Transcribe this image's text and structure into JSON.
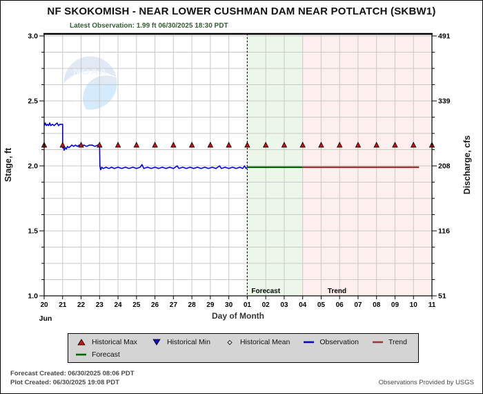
{
  "header": {
    "title": "NF SKOKOMISH - NEAR LOWER CUSHMAN DAM NEAR POTLATCH  (SKBW1)",
    "latest_observation": "Latest Observation: 1.99 ft 06/30/2025 18:30 PDT"
  },
  "footer": {
    "forecast_created": "Forecast Created: 06/30/2025 08:06 PDT",
    "plot_created": "Plot Created: 06/30/2025 19:08 PDT",
    "credit": "Observations Provided by USGS"
  },
  "colors": {
    "observation": "#0000e0",
    "forecast": "#006400",
    "trend": "#a63232",
    "historical_max": "#cc1111",
    "historical_min": "#1111cc",
    "historical_mean": "#e8e8e8",
    "forecast_band": "#edf7e9",
    "trend_band": "#fcefee",
    "gridline": "#c9c9c9",
    "legend_bg": "#d4d4d4"
  },
  "chart_data": {
    "type": "line",
    "title": "NF SKOKOMISH - NEAR LOWER CUSHMAN DAM NEAR POTLATCH  (SKBW1)",
    "subtitle": "Latest Observation: 1.99 ft 06/30/2025 18:30 PDT",
    "xlabel": "Day of Month",
    "month_label": "Jun",
    "ylabel_left": "Stage, ft",
    "ylabel_right": "Discharge, cfs",
    "watermark": "NOAA",
    "x_unit": "days since Jun 20",
    "xlim": [
      0,
      21
    ],
    "ylim": [
      1.0,
      3.0
    ],
    "x_tick_labels": [
      "20",
      "21",
      "22",
      "23",
      "24",
      "25",
      "26",
      "27",
      "28",
      "29",
      "30",
      "01",
      "02",
      "03",
      "04",
      "05",
      "06",
      "07",
      "08",
      "09",
      "10",
      "11"
    ],
    "y_left_ticks": [
      3.0,
      2.5,
      2.0,
      1.5,
      1.0
    ],
    "y_left_tick_labels": [
      "3.0",
      "2.5",
      "2.0",
      "1.5",
      "1.0"
    ],
    "y_right_tick_labels": [
      "491",
      "339",
      "208",
      "116",
      "51"
    ],
    "grid": true,
    "forecast_region": {
      "start": 11,
      "end": 14,
      "label": "Forecast",
      "fill": "#edf7e9"
    },
    "trend_region": {
      "start": 14,
      "end": 21,
      "label": "Trend",
      "fill": "#fcefee"
    },
    "series": [
      {
        "name": "Observation",
        "kind": "line",
        "color": "#0000e0",
        "width": 1.6,
        "points": [
          [
            0,
            2.31
          ],
          [
            0.06,
            2.33
          ],
          [
            0.12,
            2.31
          ],
          [
            0.18,
            2.32
          ],
          [
            0.24,
            2.31
          ],
          [
            0.3,
            2.33
          ],
          [
            0.36,
            2.31
          ],
          [
            0.45,
            2.32
          ],
          [
            0.54,
            2.31
          ],
          [
            0.62,
            2.32
          ],
          [
            0.7,
            2.33
          ],
          [
            0.78,
            2.31
          ],
          [
            0.86,
            2.32
          ],
          [
            0.93,
            2.32
          ],
          [
            1.0,
            2.32
          ],
          [
            1.0,
            2.14
          ],
          [
            1.04,
            2.15
          ],
          [
            1.08,
            2.12
          ],
          [
            1.14,
            2.14
          ],
          [
            1.2,
            2.13
          ],
          [
            1.26,
            2.15
          ],
          [
            1.34,
            2.14
          ],
          [
            1.42,
            2.15
          ],
          [
            1.5,
            2.16
          ],
          [
            1.6,
            2.15
          ],
          [
            1.7,
            2.16
          ],
          [
            1.8,
            2.15
          ],
          [
            1.9,
            2.16
          ],
          [
            2.0,
            2.15
          ],
          [
            2.15,
            2.16
          ],
          [
            2.3,
            2.15
          ],
          [
            2.45,
            2.16
          ],
          [
            2.6,
            2.16
          ],
          [
            2.75,
            2.15
          ],
          [
            2.9,
            2.16
          ],
          [
            3.0,
            2.16
          ],
          [
            3.02,
            2.0
          ],
          [
            3.06,
            1.97
          ],
          [
            3.12,
            1.99
          ],
          [
            3.2,
            1.98
          ],
          [
            3.35,
            1.99
          ],
          [
            3.5,
            1.98
          ],
          [
            3.65,
            1.99
          ],
          [
            3.8,
            1.98
          ],
          [
            4.0,
            1.99
          ],
          [
            4.2,
            1.98
          ],
          [
            4.4,
            1.99
          ],
          [
            4.6,
            1.98
          ],
          [
            4.8,
            1.99
          ],
          [
            5.0,
            1.98
          ],
          [
            5.2,
            1.99
          ],
          [
            5.3,
            2.01
          ],
          [
            5.4,
            1.98
          ],
          [
            5.6,
            1.99
          ],
          [
            5.8,
            1.98
          ],
          [
            6.0,
            1.99
          ],
          [
            6.2,
            1.98
          ],
          [
            6.4,
            1.99
          ],
          [
            6.6,
            1.98
          ],
          [
            6.8,
            1.99
          ],
          [
            7.0,
            1.98
          ],
          [
            7.2,
            2.0
          ],
          [
            7.3,
            1.98
          ],
          [
            7.5,
            1.99
          ],
          [
            7.7,
            1.98
          ],
          [
            7.9,
            1.99
          ],
          [
            8.1,
            1.98
          ],
          [
            8.3,
            1.99
          ],
          [
            8.5,
            1.98
          ],
          [
            8.7,
            1.99
          ],
          [
            8.9,
            1.98
          ],
          [
            9.1,
            1.99
          ],
          [
            9.3,
            1.98
          ],
          [
            9.5,
            2.0
          ],
          [
            9.6,
            1.98
          ],
          [
            9.8,
            1.99
          ],
          [
            10.0,
            1.98
          ],
          [
            10.2,
            1.99
          ],
          [
            10.4,
            1.98
          ],
          [
            10.6,
            1.99
          ],
          [
            10.75,
            1.98
          ],
          [
            10.85,
            2.0
          ],
          [
            10.93,
            1.98
          ],
          [
            11.0,
            1.99
          ]
        ]
      },
      {
        "name": "Forecast",
        "kind": "line",
        "color": "#006400",
        "width": 2.4,
        "points": [
          [
            11,
            1.99
          ],
          [
            14,
            1.99
          ]
        ]
      },
      {
        "name": "Trend",
        "kind": "line",
        "color": "#a63232",
        "width": 2.4,
        "points": [
          [
            14,
            1.99
          ],
          [
            20.3,
            1.99
          ]
        ]
      },
      {
        "name": "Historical Max",
        "kind": "marker",
        "marker": "triangle-up",
        "color": "#cc1111",
        "points": [
          [
            0,
            2.16
          ],
          [
            1,
            2.16
          ],
          [
            2,
            2.16
          ],
          [
            3,
            2.16
          ],
          [
            4,
            2.16
          ],
          [
            5,
            2.16
          ],
          [
            6,
            2.16
          ],
          [
            7,
            2.16
          ],
          [
            8,
            2.16
          ],
          [
            9,
            2.16
          ],
          [
            10,
            2.16
          ],
          [
            11,
            2.16
          ],
          [
            12,
            2.16
          ],
          [
            13,
            2.16
          ],
          [
            14,
            2.16
          ],
          [
            15,
            2.16
          ],
          [
            16,
            2.16
          ],
          [
            17,
            2.16
          ],
          [
            18,
            2.16
          ],
          [
            19,
            2.16
          ],
          [
            20,
            2.16
          ],
          [
            21,
            2.16
          ]
        ]
      }
    ],
    "legend": [
      {
        "label": "Historical Max",
        "marker": "triangle-up",
        "color": "#cc1111"
      },
      {
        "label": "Historical Min",
        "marker": "triangle-down",
        "color": "#1111cc"
      },
      {
        "label": "Historical Mean",
        "marker": "diamond",
        "color": "#e8e8e8"
      },
      {
        "label": "Observation",
        "marker": "line",
        "color": "#0000e0"
      },
      {
        "label": "Trend",
        "marker": "line",
        "color": "#a63232"
      },
      {
        "label": "Forecast",
        "marker": "line",
        "color": "#006400"
      }
    ],
    "legend_position": "bottom"
  }
}
